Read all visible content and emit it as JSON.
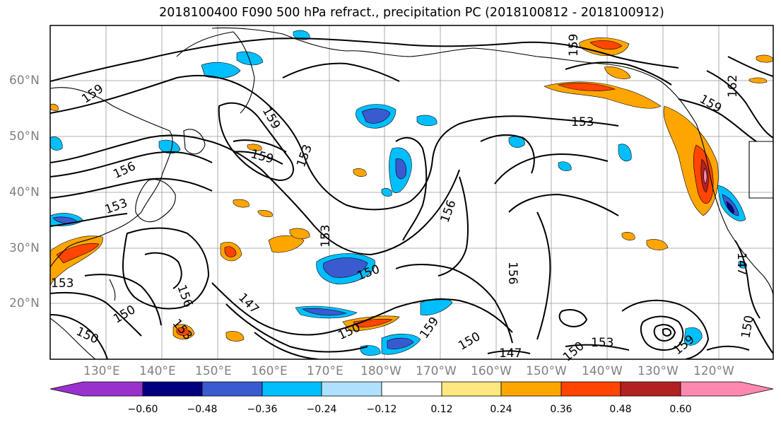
{
  "title": "2018100400 F090 500 hPa refract., precipitation PC (2018100812 - 2018100912)",
  "lat_labels": [
    "60°N",
    "50°N",
    "40°N",
    "30°N",
    "20°N"
  ],
  "lon_labels": [
    "130°E",
    "140°E",
    "150°E",
    "160°E",
    "170°E",
    "180°W",
    "170°W",
    "160°W",
    "150°W",
    "140°W",
    "130°W",
    "120°W"
  ],
  "contour_labels": [
    "159",
    "156",
    "153",
    "159",
    "153",
    "153",
    "159",
    "150",
    "153",
    "156",
    "150",
    "150",
    "147",
    "156",
    "153",
    "150",
    "159",
    "150",
    "147",
    "156",
    "150",
    "159",
    "147",
    "159",
    "162",
    "159",
    "153",
    "153",
    "150"
  ],
  "colorbar": {
    "ticks": [
      "−0.60",
      "−0.48",
      "−0.36",
      "−0.24",
      "−0.12",
      "0.12",
      "0.24",
      "0.36",
      "0.48",
      "0.60"
    ],
    "colors": [
      "#9932cc",
      "#000080",
      "#3a5bd0",
      "#00bfff",
      "#b0e0ff",
      "#ffffff",
      "#ffe880",
      "#ffa500",
      "#ff4500",
      "#b22222",
      "#ff88b0"
    ]
  },
  "palette": {
    "neg_strong": "#3a5bd0",
    "neg_darkest": "#000080",
    "neg_mid": "#00bfff",
    "neg_light": "#b0e0ff",
    "pos_light": "#ffe880",
    "pos_mid": "#ffa500",
    "pos_strong": "#ff4500",
    "pos_darkest": "#b22222",
    "pos_extreme": "#ff88b0"
  }
}
